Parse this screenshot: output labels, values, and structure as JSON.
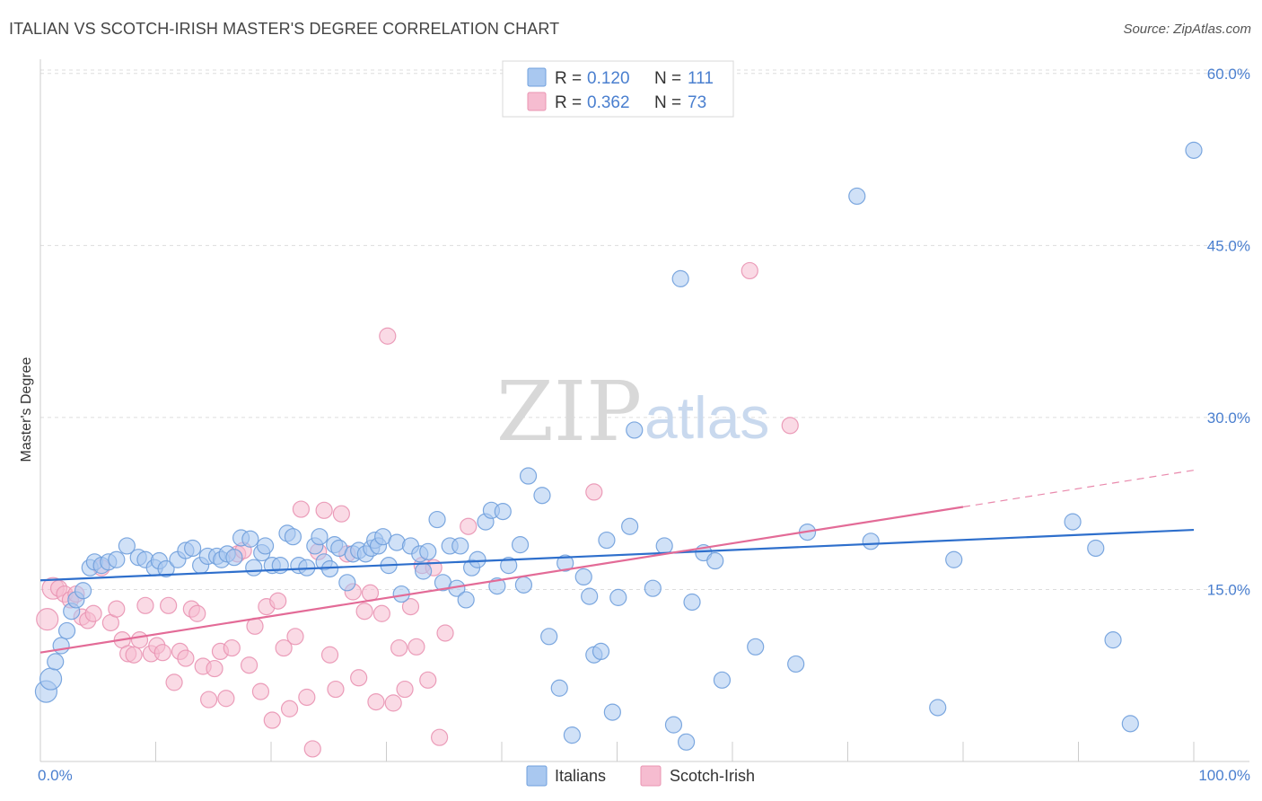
{
  "title": "ITALIAN VS SCOTCH-IRISH MASTER'S DEGREE CORRELATION CHART",
  "source": "Source: ZipAtlas.com",
  "colors": {
    "italians_fill": "#a9c8f0",
    "italians_stroke": "#6f9fdc",
    "italians_line": "#2e6fcc",
    "scotch_fill": "#f6bcd0",
    "scotch_stroke": "#e994b2",
    "scotch_line": "#e36b97",
    "tick_text": "#4a7fcf",
    "grid": "#dddddd"
  },
  "legend": {
    "rows": [
      {
        "r_label": "R =",
        "r_value": "0.120",
        "n_label": "N =",
        "n_value": "111"
      },
      {
        "r_label": "R =",
        "r_value": "0.362",
        "n_label": "N =",
        "n_value": "73"
      }
    ]
  },
  "watermark": {
    "zip": "ZIP",
    "atlas": "atlas"
  },
  "chart_data": {
    "type": "scatter",
    "title": "ITALIAN VS SCOTCH-IRISH MASTER'S DEGREE CORRELATION CHART",
    "xlabel": "",
    "ylabel": "Master's Degree",
    "xlim": [
      0,
      100
    ],
    "ylim": [
      0,
      62
    ],
    "x_tick_labels": [
      "0.0%",
      "100.0%"
    ],
    "y_ticks": [
      15,
      30,
      45,
      60
    ],
    "y_tick_labels": [
      "15.0%",
      "30.0%",
      "45.0%",
      "60.0%"
    ],
    "grid": "horizontal dashed",
    "legend_position": "top-center",
    "series": [
      {
        "name": "Italians",
        "R": 0.12,
        "N": 111,
        "trend": {
          "x": [
            0,
            100
          ],
          "y": [
            15.8,
            20.2
          ]
        },
        "points": [
          [
            0.5,
            6.1
          ],
          [
            0.9,
            7.2
          ],
          [
            1.3,
            8.7
          ],
          [
            1.8,
            10.1
          ],
          [
            2.3,
            11.4
          ],
          [
            2.7,
            13.1
          ],
          [
            3.1,
            14.1
          ],
          [
            3.7,
            14.9
          ],
          [
            4.3,
            16.9
          ],
          [
            4.7,
            17.4
          ],
          [
            5.3,
            17.1
          ],
          [
            5.9,
            17.4
          ],
          [
            6.6,
            17.6
          ],
          [
            7.5,
            18.8
          ],
          [
            8.5,
            17.8
          ],
          [
            9.1,
            17.6
          ],
          [
            9.9,
            16.9
          ],
          [
            10.3,
            17.5
          ],
          [
            10.9,
            16.8
          ],
          [
            11.9,
            17.6
          ],
          [
            12.6,
            18.4
          ],
          [
            13.2,
            18.6
          ],
          [
            13.9,
            17.1
          ],
          [
            14.5,
            17.9
          ],
          [
            15.3,
            17.9
          ],
          [
            15.7,
            17.6
          ],
          [
            16.2,
            18.1
          ],
          [
            16.8,
            17.8
          ],
          [
            17.4,
            19.5
          ],
          [
            18.2,
            19.4
          ],
          [
            18.5,
            16.9
          ],
          [
            19.2,
            18.2
          ],
          [
            19.5,
            18.8
          ],
          [
            20.1,
            17.1
          ],
          [
            20.8,
            17.1
          ],
          [
            21.4,
            19.9
          ],
          [
            21.9,
            19.6
          ],
          [
            22.4,
            17.1
          ],
          [
            23.1,
            16.9
          ],
          [
            23.8,
            18.8
          ],
          [
            24.2,
            19.6
          ],
          [
            24.6,
            17.4
          ],
          [
            25.1,
            16.8
          ],
          [
            25.5,
            18.9
          ],
          [
            25.9,
            18.6
          ],
          [
            26.6,
            15.6
          ],
          [
            27.1,
            18.1
          ],
          [
            27.6,
            18.4
          ],
          [
            28.2,
            18.1
          ],
          [
            28.7,
            18.6
          ],
          [
            29.0,
            19.3
          ],
          [
            29.3,
            18.8
          ],
          [
            29.7,
            19.6
          ],
          [
            30.2,
            17.1
          ],
          [
            30.9,
            19.1
          ],
          [
            31.3,
            14.6
          ],
          [
            32.1,
            18.8
          ],
          [
            32.9,
            18.1
          ],
          [
            33.2,
            16.6
          ],
          [
            33.6,
            18.3
          ],
          [
            34.4,
            21.1
          ],
          [
            34.9,
            15.6
          ],
          [
            35.5,
            18.8
          ],
          [
            36.1,
            15.1
          ],
          [
            36.4,
            18.8
          ],
          [
            36.9,
            14.1
          ],
          [
            37.4,
            16.9
          ],
          [
            37.9,
            17.6
          ],
          [
            38.6,
            20.9
          ],
          [
            39.1,
            21.9
          ],
          [
            39.6,
            15.3
          ],
          [
            40.1,
            21.8
          ],
          [
            40.6,
            17.1
          ],
          [
            41.6,
            18.9
          ],
          [
            41.9,
            15.4
          ],
          [
            42.3,
            24.9
          ],
          [
            43.5,
            23.2
          ],
          [
            44.1,
            10.9
          ],
          [
            45.0,
            6.4
          ],
          [
            45.5,
            17.3
          ],
          [
            46.1,
            2.3
          ],
          [
            47.1,
            16.1
          ],
          [
            47.6,
            14.4
          ],
          [
            48.0,
            9.3
          ],
          [
            48.6,
            9.6
          ],
          [
            49.1,
            19.3
          ],
          [
            49.6,
            4.3
          ],
          [
            50.1,
            14.3
          ],
          [
            51.1,
            20.5
          ],
          [
            51.5,
            28.9
          ],
          [
            53.1,
            15.1
          ],
          [
            54.1,
            18.8
          ],
          [
            54.9,
            3.2
          ],
          [
            55.5,
            42.1
          ],
          [
            56.0,
            1.7
          ],
          [
            56.5,
            13.9
          ],
          [
            57.5,
            18.2
          ],
          [
            58.5,
            17.5
          ],
          [
            59.1,
            7.1
          ],
          [
            65.5,
            8.5
          ],
          [
            70.8,
            49.3
          ],
          [
            77.8,
            4.7
          ],
          [
            79.2,
            17.6
          ],
          [
            89.5,
            20.9
          ],
          [
            91.5,
            18.6
          ],
          [
            93.0,
            10.6
          ],
          [
            94.5,
            3.3
          ],
          [
            100.0,
            53.3
          ],
          [
            62.0,
            10.0
          ],
          [
            66.5,
            20.0
          ],
          [
            72.0,
            19.2
          ]
        ]
      },
      {
        "name": "Scotch-Irish",
        "R": 0.362,
        "N": 73,
        "trend": {
          "x": [
            0,
            80
          ],
          "y": [
            9.5,
            22.2
          ]
        },
        "trend_dashed": {
          "x": [
            80,
            100
          ],
          "y": [
            22.2,
            25.4
          ]
        },
        "points": [
          [
            0.6,
            12.4
          ],
          [
            1.1,
            15.1
          ],
          [
            1.6,
            15.1
          ],
          [
            2.1,
            14.6
          ],
          [
            2.6,
            14.1
          ],
          [
            3.1,
            14.6
          ],
          [
            3.6,
            12.6
          ],
          [
            4.1,
            12.3
          ],
          [
            4.6,
            12.9
          ],
          [
            5.3,
            16.9
          ],
          [
            6.1,
            12.1
          ],
          [
            6.6,
            13.3
          ],
          [
            7.1,
            10.6
          ],
          [
            7.6,
            9.4
          ],
          [
            8.1,
            9.3
          ],
          [
            8.6,
            10.6
          ],
          [
            9.1,
            13.6
          ],
          [
            9.6,
            9.4
          ],
          [
            10.1,
            10.1
          ],
          [
            10.6,
            9.5
          ],
          [
            11.1,
            13.6
          ],
          [
            11.6,
            6.9
          ],
          [
            12.1,
            9.6
          ],
          [
            12.6,
            9.0
          ],
          [
            13.1,
            13.3
          ],
          [
            13.6,
            12.9
          ],
          [
            14.1,
            8.3
          ],
          [
            14.6,
            5.4
          ],
          [
            15.1,
            8.1
          ],
          [
            15.6,
            9.6
          ],
          [
            16.1,
            5.5
          ],
          [
            16.6,
            9.9
          ],
          [
            17.1,
            18.1
          ],
          [
            17.6,
            18.4
          ],
          [
            18.1,
            8.4
          ],
          [
            18.6,
            11.8
          ],
          [
            19.1,
            6.1
          ],
          [
            19.6,
            13.5
          ],
          [
            20.1,
            3.6
          ],
          [
            20.6,
            14.0
          ],
          [
            21.1,
            9.9
          ],
          [
            21.6,
            4.6
          ],
          [
            22.1,
            10.9
          ],
          [
            22.6,
            22.0
          ],
          [
            23.1,
            5.6
          ],
          [
            23.6,
            1.1
          ],
          [
            24.1,
            18.3
          ],
          [
            24.6,
            21.9
          ],
          [
            25.1,
            9.3
          ],
          [
            25.6,
            6.3
          ],
          [
            26.1,
            21.6
          ],
          [
            26.6,
            18.1
          ],
          [
            27.1,
            14.8
          ],
          [
            27.6,
            7.3
          ],
          [
            28.1,
            13.1
          ],
          [
            28.6,
            14.7
          ],
          [
            29.1,
            5.2
          ],
          [
            29.6,
            12.9
          ],
          [
            30.1,
            37.1
          ],
          [
            30.6,
            5.1
          ],
          [
            31.1,
            9.9
          ],
          [
            31.6,
            6.3
          ],
          [
            32.1,
            13.5
          ],
          [
            32.6,
            10.0
          ],
          [
            33.1,
            17.1
          ],
          [
            33.6,
            7.1
          ],
          [
            34.1,
            16.9
          ],
          [
            34.6,
            2.1
          ],
          [
            35.1,
            11.2
          ],
          [
            37.1,
            20.5
          ],
          [
            48.0,
            23.5
          ],
          [
            61.5,
            42.8
          ],
          [
            65.0,
            29.3
          ]
        ]
      }
    ]
  },
  "bottom_legend": [
    {
      "label": "Italians"
    },
    {
      "label": "Scotch-Irish"
    }
  ]
}
